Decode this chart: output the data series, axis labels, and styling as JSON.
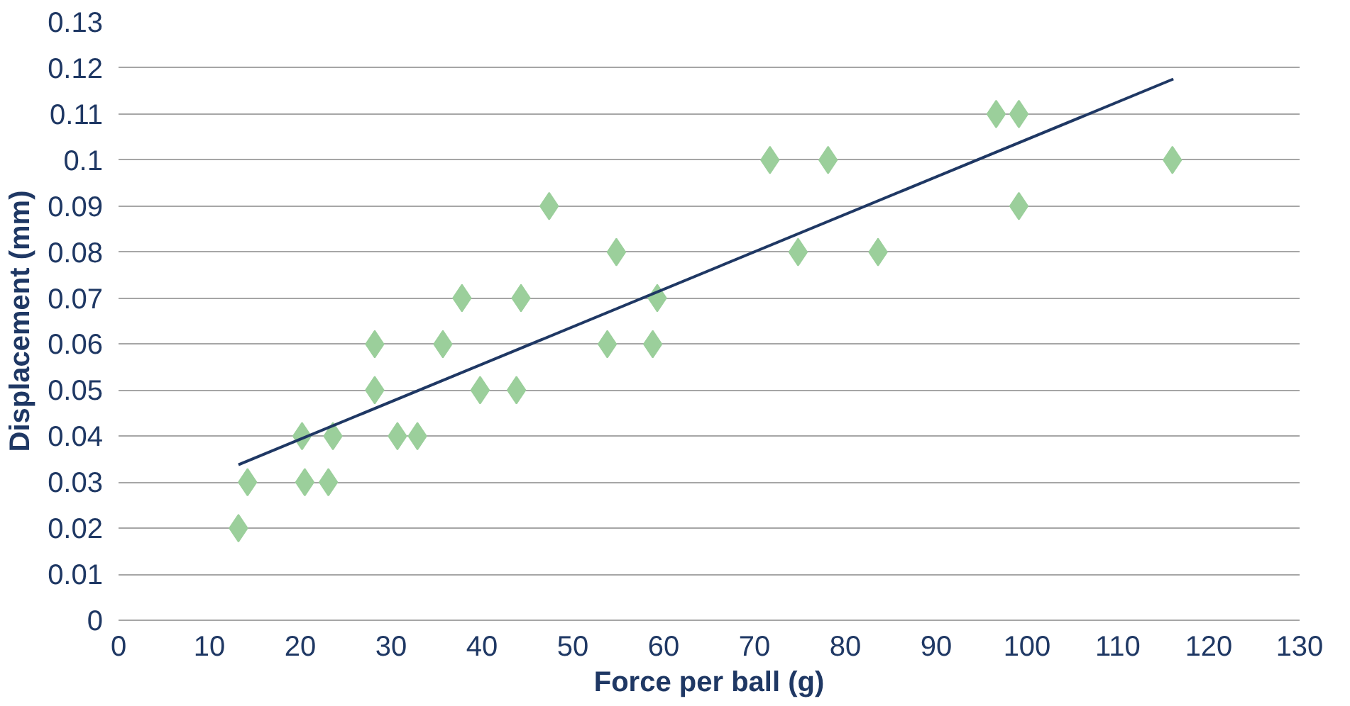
{
  "chart_data": {
    "type": "scatter",
    "xlabel": "Force per ball (g)",
    "ylabel": "Displacement (mm)",
    "xlim": [
      0,
      130
    ],
    "xticks": [
      0,
      10,
      20,
      30,
      40,
      50,
      60,
      70,
      80,
      90,
      100,
      110,
      120,
      130
    ],
    "ylim": [
      0,
      0.13
    ],
    "yticks": [
      0,
      0.01,
      0.02,
      0.03,
      0.04,
      0.05,
      0.06,
      0.07,
      0.08,
      0.09,
      0.1,
      0.11,
      0.12,
      0.13
    ],
    "grid": "y",
    "series": [
      {
        "marker": "diamond",
        "color": "#9bcf9b",
        "x": [
          13.2,
          14.2,
          20.2,
          20.5,
          23.6,
          23.1,
          28.2,
          28.2,
          30.7,
          32.9,
          35.7,
          37.8,
          39.8,
          43.8,
          44.3,
          47.4,
          53.8,
          54.8,
          58.8,
          59.3,
          71.7,
          74.8,
          78.1,
          83.6,
          96.6,
          99.1,
          99.1,
          116.0
        ],
        "values": [
          0.02,
          0.03,
          0.04,
          0.03,
          0.04,
          0.03,
          0.06,
          0.05,
          0.04,
          0.04,
          0.06,
          0.07,
          0.05,
          0.05,
          0.07,
          0.09,
          0.06,
          0.08,
          0.06,
          0.07,
          0.1,
          0.08,
          0.1,
          0.08,
          0.11,
          0.11,
          0.09,
          0.1
        ]
      },
      {
        "type": "line",
        "color": "#1f3864",
        "x": [
          13.2,
          116.1
        ],
        "values": [
          0.0338,
          0.1176
        ]
      }
    ]
  }
}
